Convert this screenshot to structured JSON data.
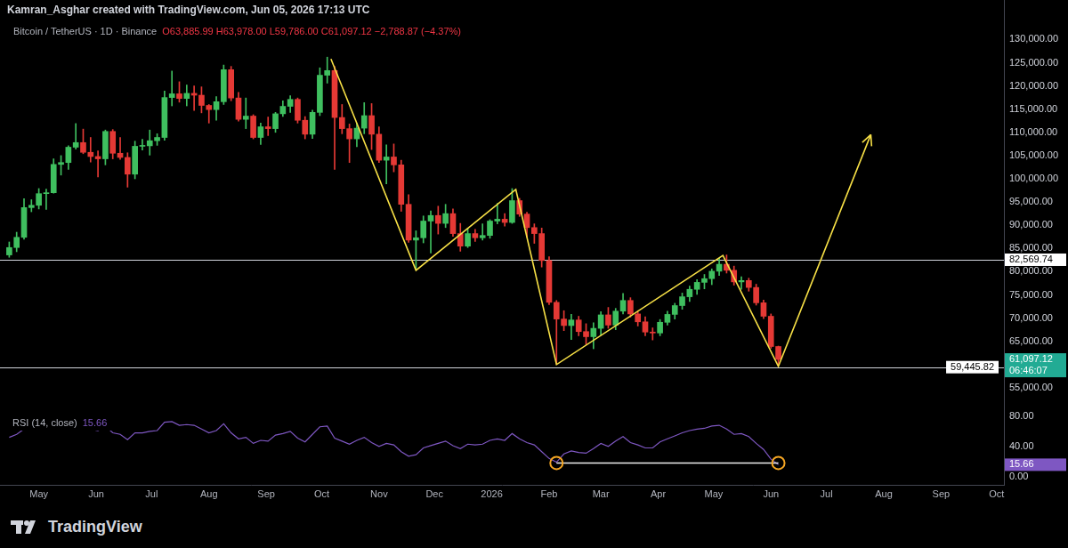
{
  "header": {
    "credit": "Kamran_Asghar created with TradingView.com, Jun 05, 2026 17:13 UTC",
    "brand": "TradingView"
  },
  "chart_data": {
    "type": "candlestick",
    "title": "Bitcoin / TetherUS · 1D · Binance",
    "subtitle": "O63,885.99 H63,978.00 L59,786.00 C61,097.12 −2,788.87 (−4.37%)",
    "x": [
      "2025-04-15",
      "2025-04-19",
      "2025-04-23",
      "2025-04-27",
      "2025-05-01",
      "2025-05-05",
      "2025-05-09",
      "2025-05-13",
      "2025-05-17",
      "2025-05-21",
      "2025-05-25",
      "2025-05-29",
      "2025-06-02",
      "2025-06-06",
      "2025-06-10",
      "2025-06-14",
      "2025-06-18",
      "2025-06-22",
      "2025-06-26",
      "2025-06-30",
      "2025-07-04",
      "2025-07-08",
      "2025-07-12",
      "2025-07-16",
      "2025-07-20",
      "2025-07-24",
      "2025-07-28",
      "2025-08-01",
      "2025-08-05",
      "2025-08-09",
      "2025-08-13",
      "2025-08-17",
      "2025-08-21",
      "2025-08-25",
      "2025-08-29",
      "2025-09-02",
      "2025-09-06",
      "2025-09-10",
      "2025-09-14",
      "2025-09-18",
      "2025-09-22",
      "2025-09-26",
      "2025-09-30",
      "2025-10-04",
      "2025-10-08",
      "2025-10-12",
      "2025-10-16",
      "2025-10-20",
      "2025-10-24",
      "2025-10-28",
      "2025-11-01",
      "2025-11-05",
      "2025-11-09",
      "2025-11-13",
      "2025-11-17",
      "2025-11-21",
      "2025-11-25",
      "2025-11-29",
      "2025-12-03",
      "2025-12-07",
      "2025-12-11",
      "2025-12-15",
      "2025-12-19",
      "2025-12-23",
      "2025-12-27",
      "2025-12-31",
      "2026-01-04",
      "2026-01-08",
      "2026-01-12",
      "2026-01-16",
      "2026-01-20",
      "2026-01-24",
      "2026-01-28",
      "2026-02-01",
      "2026-02-05",
      "2026-02-09",
      "2026-02-13",
      "2026-02-17",
      "2026-02-21",
      "2026-02-25",
      "2026-03-01",
      "2026-03-05",
      "2026-03-09",
      "2026-03-13",
      "2026-03-17",
      "2026-03-21",
      "2026-03-25",
      "2026-03-29",
      "2026-04-02",
      "2026-04-06",
      "2026-04-10",
      "2026-04-14",
      "2026-04-18",
      "2026-04-22",
      "2026-04-26",
      "2026-04-30",
      "2026-05-04",
      "2026-05-08",
      "2026-05-12",
      "2026-05-16",
      "2026-05-20",
      "2026-05-24",
      "2026-05-28",
      "2026-06-01",
      "2026-06-05"
    ],
    "xlim": [
      "2025-04-10",
      "2026-10-05"
    ],
    "xticks": [
      {
        "value": "2025-05-01",
        "label": "May"
      },
      {
        "value": "2025-06-01",
        "label": "Jun"
      },
      {
        "value": "2025-07-01",
        "label": "Jul"
      },
      {
        "value": "2025-08-01",
        "label": "Aug"
      },
      {
        "value": "2025-09-01",
        "label": "Sep"
      },
      {
        "value": "2025-10-01",
        "label": "Oct"
      },
      {
        "value": "2025-11-01",
        "label": "Nov"
      },
      {
        "value": "2025-12-01",
        "label": "Dec"
      },
      {
        "value": "2026-01-01",
        "label": "2026"
      },
      {
        "value": "2026-02-01",
        "label": "Feb"
      },
      {
        "value": "2026-03-01",
        "label": "Mar"
      },
      {
        "value": "2026-04-01",
        "label": "Apr"
      },
      {
        "value": "2026-05-01",
        "label": "May"
      },
      {
        "value": "2026-06-01",
        "label": "Jun"
      },
      {
        "value": "2026-07-01",
        "label": "Jul"
      },
      {
        "value": "2026-08-01",
        "label": "Aug"
      },
      {
        "value": "2026-09-01",
        "label": "Sep"
      },
      {
        "value": "2026-10-01",
        "label": "Oct"
      }
    ],
    "series": [
      {
        "type": "candlestick",
        "open": [
          83600,
          85200,
          87400,
          93800,
          94300,
          96800,
          97000,
          103100,
          103500,
          106800,
          107800,
          105700,
          104800,
          104300,
          110200,
          105500,
          104600,
          101000,
          107000,
          107100,
          108200,
          108900,
          117500,
          118300,
          117300,
          118400,
          118000,
          115800,
          114900,
          116600,
          123500,
          117400,
          112800,
          113500,
          108900,
          111200,
          110800,
          114000,
          115600,
          117100,
          112600,
          109600,
          114300,
          122300,
          123300,
          113200,
          110800,
          108600,
          110900,
          113600,
          109600,
          104000,
          104700,
          103000,
          94500,
          86800,
          87300,
          90900,
          92100,
          90400,
          92500,
          88200,
          85500,
          88200,
          87300,
          87800,
          90900,
          91300,
          90600,
          95300,
          92400,
          89500,
          88200,
          82400,
          73400,
          69800,
          68400,
          69600,
          67100,
          66000,
          67800,
          70700,
          68500,
          71500,
          73800,
          70900,
          69200,
          67000,
          66800,
          69100,
          70800,
          72700,
          74600,
          76200,
          77700,
          78500,
          80100,
          81600,
          80300,
          77800,
          78100,
          76600,
          73300,
          70400,
          63885.99
        ],
        "high": [
          86400,
          88500,
          95700,
          95500,
          97900,
          97800,
          104300,
          105000,
          107100,
          111900,
          110700,
          108900,
          106000,
          110500,
          110600,
          108900,
          105600,
          108100,
          108500,
          110500,
          109700,
          118900,
          123200,
          120900,
          120200,
          120000,
          119800,
          116000,
          117700,
          124500,
          124200,
          118600,
          117400,
          113800,
          112000,
          113300,
          114300,
          116800,
          117900,
          117400,
          113400,
          114800,
          123900,
          126200,
          124200,
          116000,
          111800,
          112000,
          116400,
          116200,
          111200,
          107300,
          107500,
          104000,
          96600,
          88800,
          92000,
          93100,
          94100,
          94500,
          93500,
          90400,
          89400,
          89100,
          90300,
          91200,
          94700,
          92500,
          97900,
          95800,
          92800,
          90300,
          89400,
          83200,
          73800,
          71600,
          70800,
          70400,
          68800,
          69000,
          71400,
          72300,
          72100,
          75300,
          74400,
          71600,
          70300,
          67900,
          69700,
          71500,
          73200,
          75400,
          76900,
          78300,
          79400,
          80600,
          82900,
          83600,
          81200,
          78900,
          78600,
          77300,
          73900,
          70900,
          63978
        ],
        "low": [
          83100,
          84300,
          87000,
          92900,
          93500,
          93400,
          96900,
          100800,
          102000,
          106400,
          105400,
          103600,
          100400,
          103000,
          104300,
          104200,
          98200,
          100000,
          106200,
          105100,
          107200,
          108300,
          115700,
          116500,
          115700,
          114700,
          114200,
          112000,
          112600,
          116000,
          116800,
          112400,
          110800,
          108600,
          107400,
          109300,
          110000,
          113400,
          114300,
          112000,
          108600,
          108700,
          113600,
          120600,
          102000,
          109700,
          103500,
          106900,
          109700,
          106300,
          103500,
          98900,
          101500,
          93000,
          86300,
          80600,
          86200,
          84000,
          88100,
          89500,
          87600,
          84400,
          85200,
          86500,
          86800,
          87200,
          90300,
          89800,
          90400,
          91900,
          87400,
          86100,
          81000,
          72900,
          60100,
          67300,
          65400,
          66200,
          64300,
          63400,
          66300,
          67800,
          67500,
          70900,
          70200,
          68300,
          66200,
          65300,
          66200,
          68500,
          69800,
          71900,
          73600,
          75100,
          76300,
          77200,
          79200,
          79700,
          77100,
          76200,
          75800,
          72800,
          69900,
          63500,
          59786
        ],
        "close": [
          85200,
          87400,
          93800,
          94300,
          96800,
          97000,
          103100,
          103500,
          106800,
          107800,
          105700,
          104800,
          104300,
          110200,
          105500,
          104600,
          101000,
          107000,
          107100,
          108200,
          108900,
          117500,
          118300,
          117300,
          118400,
          118000,
          115800,
          114900,
          116600,
          123500,
          117400,
          112800,
          113500,
          108900,
          111200,
          110800,
          114000,
          115600,
          117100,
          112600,
          109600,
          114300,
          122300,
          123300,
          113200,
          110800,
          108600,
          110900,
          113600,
          109600,
          104000,
          104700,
          103000,
          94500,
          86800,
          87300,
          90900,
          92100,
          90400,
          92500,
          88200,
          85500,
          88200,
          87300,
          87800,
          90900,
          91300,
          90600,
          95300,
          92400,
          89500,
          88200,
          82400,
          73400,
          69800,
          68400,
          69600,
          67100,
          66000,
          67800,
          70700,
          68500,
          71500,
          73800,
          70900,
          69200,
          67000,
          66800,
          69100,
          70800,
          72700,
          74600,
          76200,
          77700,
          78500,
          80100,
          81600,
          80300,
          77800,
          78100,
          76600,
          73300,
          70400,
          63885.99,
          61097.12
        ]
      },
      {
        "name": "RSI (14, close)",
        "type": "line",
        "axis": "y2",
        "color": "#7e57c2",
        "last_label": "15.66",
        "values": [
          52,
          56,
          63,
          64,
          66,
          65,
          71,
          71,
          72,
          73,
          66,
          63,
          61,
          67,
          58,
          56,
          49,
          58,
          58,
          60,
          61,
          72,
          73,
          68,
          69,
          68,
          63,
          58,
          61,
          70,
          58,
          50,
          52,
          44,
          48,
          47,
          55,
          57,
          60,
          51,
          46,
          56,
          66,
          67,
          51,
          47,
          43,
          48,
          52,
          45,
          40,
          44,
          42,
          33,
          27,
          29,
          38,
          41,
          44,
          47,
          41,
          37,
          43,
          42,
          43,
          48,
          50,
          48,
          57,
          50,
          45,
          42,
          33,
          24,
          19,
          30,
          34,
          32,
          31,
          37,
          44,
          40,
          47,
          53,
          45,
          42,
          38,
          38,
          46,
          50,
          54,
          58,
          61,
          63,
          64,
          67,
          68,
          63,
          56,
          57,
          53,
          44,
          36,
          23,
          15.66
        ]
      }
    ],
    "ylim": [
      50000,
      138500
    ],
    "yticks": [
      {
        "value": 55000,
        "label": "55,000.00"
      },
      {
        "value": 65000,
        "label": "65,000.00"
      },
      {
        "value": 70000,
        "label": "70,000.00"
      },
      {
        "value": 75000,
        "label": "75,000.00"
      },
      {
        "value": 80000,
        "label": "80,000.00"
      },
      {
        "value": 85000,
        "label": "85,000.00"
      },
      {
        "value": 90000,
        "label": "90,000.00"
      },
      {
        "value": 95000,
        "label": "95,000.00"
      },
      {
        "value": 100000,
        "label": "100,000.00"
      },
      {
        "value": 105000,
        "label": "105,000.00"
      },
      {
        "value": 110000,
        "label": "110,000.00"
      },
      {
        "value": 115000,
        "label": "115,000.00"
      },
      {
        "value": 120000,
        "label": "120,000.00"
      },
      {
        "value": 125000,
        "label": "125,000.00"
      },
      {
        "value": 130000,
        "label": "130,000.00"
      }
    ],
    "y2lim": [
      -12,
      87
    ],
    "y2ticks": [
      {
        "value": 0,
        "label": "0.00"
      },
      {
        "value": 40,
        "label": "40.00"
      },
      {
        "value": 80,
        "label": "80.00"
      }
    ],
    "grid": false,
    "levels": [
      {
        "value": 82569.74,
        "label": "82,569.74"
      },
      {
        "value": 59445.82,
        "label": "59,445.82"
      }
    ],
    "last_price": {
      "value": 61097.12,
      "label": "61,097.12",
      "countdown": "06:46:07"
    },
    "annotations": {
      "path": {
        "x": [
          "2025-10-06",
          "2025-11-21",
          "2026-01-14",
          "2026-02-05",
          "2026-05-06",
          "2026-06-05",
          "2026-07-25"
        ],
        "y": [
          125800,
          80300,
          97700,
          60000,
          83500,
          59600,
          109500
        ]
      },
      "rsi_marks": {
        "x": [
          "2026-02-05",
          "2026-06-05"
        ],
        "values": [
          18,
          18
        ]
      }
    }
  }
}
